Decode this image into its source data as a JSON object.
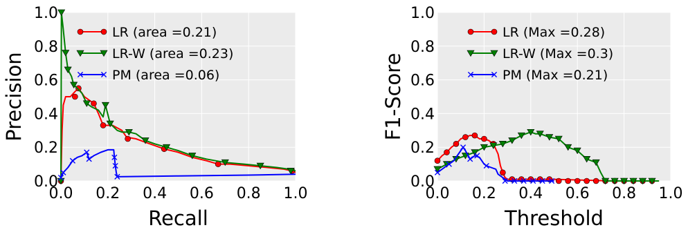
{
  "chart_data": [
    {
      "type": "line",
      "xlabel": "Recall",
      "ylabel": "Precision",
      "xlim": [
        0,
        1.0
      ],
      "ylim": [
        0,
        1.0
      ],
      "xticks": [
        "0.0",
        "0.2",
        "0.4",
        "0.6",
        "0.8",
        "1.0"
      ],
      "yticks": [
        "0.0",
        "0.2",
        "0.4",
        "0.6",
        "0.8",
        "1.0"
      ],
      "grid": true,
      "legend_position": "top-right",
      "series": [
        {
          "name": "LR (area =0.21)",
          "color": "#ff0000",
          "marker": "circle",
          "points": [
            [
              0.0,
              0.0
            ],
            [
              0.005,
              0.3
            ],
            [
              0.01,
              0.45
            ],
            [
              0.02,
              0.5
            ],
            [
              0.04,
              0.5
            ],
            [
              0.06,
              0.53
            ],
            [
              0.075,
              0.55
            ],
            [
              0.1,
              0.5
            ],
            [
              0.14,
              0.46
            ],
            [
              0.16,
              0.4
            ],
            [
              0.18,
              0.33
            ],
            [
              0.22,
              0.33
            ],
            [
              0.26,
              0.3
            ],
            [
              0.28,
              0.26
            ],
            [
              0.32,
              0.25
            ],
            [
              0.36,
              0.23
            ],
            [
              0.4,
              0.21
            ],
            [
              0.44,
              0.19
            ],
            [
              0.5,
              0.17
            ],
            [
              0.56,
              0.14
            ],
            [
              0.62,
              0.12
            ],
            [
              0.67,
              0.1
            ],
            [
              0.72,
              0.1
            ],
            [
              0.8,
              0.09
            ],
            [
              0.88,
              0.08
            ],
            [
              0.95,
              0.07
            ],
            [
              0.985,
              0.06
            ],
            [
              1.0,
              0.05
            ]
          ],
          "markers": [
            [
              0.0,
              0.0
            ],
            [
              0.06,
              0.5
            ],
            [
              0.075,
              0.55
            ],
            [
              0.14,
              0.46
            ],
            [
              0.18,
              0.33
            ],
            [
              0.285,
              0.25
            ],
            [
              0.44,
              0.19
            ],
            [
              0.67,
              0.1
            ],
            [
              0.985,
              0.06
            ]
          ]
        },
        {
          "name": "LR-W (area =0.23)",
          "color": "#008000",
          "marker": "triangle-down",
          "points": [
            [
              0.0,
              0.0
            ],
            [
              0.002,
              1.0
            ],
            [
              0.01,
              0.9
            ],
            [
              0.02,
              0.76
            ],
            [
              0.03,
              0.66
            ],
            [
              0.045,
              0.62
            ],
            [
              0.055,
              0.57
            ],
            [
              0.07,
              0.55
            ],
            [
              0.09,
              0.52
            ],
            [
              0.11,
              0.46
            ],
            [
              0.13,
              0.44
            ],
            [
              0.16,
              0.42
            ],
            [
              0.18,
              0.38
            ],
            [
              0.19,
              0.45
            ],
            [
              0.21,
              0.34
            ],
            [
              0.24,
              0.3
            ],
            [
              0.26,
              0.29
            ],
            [
              0.29,
              0.29
            ],
            [
              0.32,
              0.28
            ],
            [
              0.36,
              0.24
            ],
            [
              0.4,
              0.22
            ],
            [
              0.45,
              0.2
            ],
            [
              0.5,
              0.18
            ],
            [
              0.56,
              0.15
            ],
            [
              0.62,
              0.13
            ],
            [
              0.7,
              0.11
            ],
            [
              0.78,
              0.1
            ],
            [
              0.85,
              0.09
            ],
            [
              0.92,
              0.08
            ],
            [
              0.97,
              0.07
            ],
            [
              1.0,
              0.06
            ]
          ],
          "markers": [
            [
              0.0,
              0.0
            ],
            [
              0.002,
              1.0
            ],
            [
              0.02,
              0.76
            ],
            [
              0.03,
              0.66
            ],
            [
              0.055,
              0.57
            ],
            [
              0.11,
              0.46
            ],
            [
              0.19,
              0.45
            ],
            [
              0.21,
              0.34
            ],
            [
              0.29,
              0.29
            ],
            [
              0.36,
              0.24
            ],
            [
              0.45,
              0.2
            ],
            [
              0.56,
              0.15
            ],
            [
              0.7,
              0.11
            ],
            [
              0.85,
              0.09
            ],
            [
              0.98,
              0.06
            ]
          ]
        },
        {
          "name": "PM (area =0.06)",
          "color": "#0000ff",
          "marker": "x",
          "points": [
            [
              0.0,
              0.02
            ],
            [
              0.01,
              0.05
            ],
            [
              0.03,
              0.08
            ],
            [
              0.05,
              0.12
            ],
            [
              0.07,
              0.14
            ],
            [
              0.09,
              0.15
            ],
            [
              0.11,
              0.17
            ],
            [
              0.12,
              0.13
            ],
            [
              0.14,
              0.15
            ],
            [
              0.17,
              0.17
            ],
            [
              0.2,
              0.185
            ],
            [
              0.225,
              0.185
            ],
            [
              0.228,
              0.14
            ],
            [
              0.232,
              0.09
            ],
            [
              0.236,
              0.05
            ],
            [
              0.24,
              0.025
            ],
            [
              0.5,
              0.03
            ],
            [
              0.8,
              0.035
            ],
            [
              1.0,
              0.04
            ]
          ],
          "markers": [
            [
              0.0,
              0.02
            ],
            [
              0.01,
              0.05
            ],
            [
              0.05,
              0.12
            ],
            [
              0.11,
              0.17
            ],
            [
              0.12,
              0.13
            ],
            [
              0.228,
              0.14
            ],
            [
              0.232,
              0.09
            ],
            [
              0.24,
              0.025
            ]
          ]
        }
      ]
    },
    {
      "type": "line",
      "xlabel": "Threshold",
      "ylabel": "F1-Score",
      "xlim": [
        0,
        1.0
      ],
      "ylim": [
        0,
        1.0
      ],
      "xticks": [
        "0.0",
        "0.2",
        "0.4",
        "0.6",
        "0.8",
        "1.0"
      ],
      "yticks": [
        "0.0",
        "0.2",
        "0.4",
        "0.6",
        "0.8",
        "1.0"
      ],
      "grid": true,
      "legend_position": "top-right",
      "series": [
        {
          "name": "LR (Max =0.28)",
          "color": "#ff0000",
          "marker": "circle",
          "points": [
            [
              0.0,
              0.12
            ],
            [
              0.02,
              0.15
            ],
            [
              0.04,
              0.17
            ],
            [
              0.06,
              0.2
            ],
            [
              0.08,
              0.22
            ],
            [
              0.1,
              0.25
            ],
            [
              0.12,
              0.26
            ],
            [
              0.14,
              0.27
            ],
            [
              0.16,
              0.27
            ],
            [
              0.18,
              0.25
            ],
            [
              0.2,
              0.25
            ],
            [
              0.22,
              0.24
            ],
            [
              0.24,
              0.22
            ],
            [
              0.26,
              0.16
            ],
            [
              0.27,
              0.09
            ],
            [
              0.28,
              0.05
            ],
            [
              0.29,
              0.02
            ],
            [
              0.3,
              0.01
            ],
            [
              0.5,
              0.01
            ],
            [
              0.75,
              0.0
            ],
            [
              0.95,
              0.0
            ]
          ],
          "markers": [
            [
              0.0,
              0.12
            ],
            [
              0.04,
              0.17
            ],
            [
              0.08,
              0.22
            ],
            [
              0.12,
              0.26
            ],
            [
              0.16,
              0.27
            ],
            [
              0.2,
              0.25
            ],
            [
              0.24,
              0.22
            ],
            [
              0.28,
              0.05
            ],
            [
              0.32,
              0.01
            ],
            [
              0.36,
              0.01
            ],
            [
              0.4,
              0.01
            ],
            [
              0.44,
              0.01
            ],
            [
              0.48,
              0.01
            ],
            [
              0.52,
              0.0
            ],
            [
              0.56,
              0.0
            ],
            [
              0.6,
              0.0
            ],
            [
              0.64,
              0.0
            ],
            [
              0.68,
              0.0
            ],
            [
              0.72,
              0.0
            ],
            [
              0.76,
              0.0
            ],
            [
              0.8,
              0.0
            ],
            [
              0.84,
              0.0
            ],
            [
              0.88,
              0.0
            ],
            [
              0.92,
              0.0
            ]
          ]
        },
        {
          "name": "LR-W (Max =0.3)",
          "color": "#008000",
          "marker": "triangle-down",
          "points": [
            [
              0.0,
              0.07
            ],
            [
              0.04,
              0.1
            ],
            [
              0.08,
              0.13
            ],
            [
              0.12,
              0.15
            ],
            [
              0.16,
              0.17
            ],
            [
              0.2,
              0.2
            ],
            [
              0.24,
              0.21
            ],
            [
              0.28,
              0.22
            ],
            [
              0.32,
              0.24
            ],
            [
              0.36,
              0.27
            ],
            [
              0.4,
              0.29
            ],
            [
              0.42,
              0.28
            ],
            [
              0.44,
              0.28
            ],
            [
              0.48,
              0.26
            ],
            [
              0.52,
              0.25
            ],
            [
              0.56,
              0.2
            ],
            [
              0.6,
              0.18
            ],
            [
              0.64,
              0.13
            ],
            [
              0.68,
              0.11
            ],
            [
              0.7,
              0.05
            ],
            [
              0.72,
              0.0
            ],
            [
              0.95,
              0.0
            ]
          ],
          "markers": [
            [
              0.0,
              0.07
            ],
            [
              0.04,
              0.1
            ],
            [
              0.08,
              0.13
            ],
            [
              0.12,
              0.15
            ],
            [
              0.16,
              0.17
            ],
            [
              0.2,
              0.2
            ],
            [
              0.24,
              0.21
            ],
            [
              0.28,
              0.22
            ],
            [
              0.32,
              0.24
            ],
            [
              0.36,
              0.27
            ],
            [
              0.4,
              0.29
            ],
            [
              0.44,
              0.28
            ],
            [
              0.48,
              0.26
            ],
            [
              0.52,
              0.25
            ],
            [
              0.56,
              0.2
            ],
            [
              0.6,
              0.18
            ],
            [
              0.64,
              0.13
            ],
            [
              0.68,
              0.11
            ],
            [
              0.72,
              0.0
            ],
            [
              0.76,
              0.0
            ],
            [
              0.8,
              0.0
            ],
            [
              0.84,
              0.0
            ],
            [
              0.88,
              0.0
            ],
            [
              0.92,
              0.0
            ]
          ]
        },
        {
          "name": "PM (Max =0.21)",
          "color": "#0000ff",
          "marker": "x",
          "points": [
            [
              0.0,
              0.05
            ],
            [
              0.03,
              0.08
            ],
            [
              0.05,
              0.1
            ],
            [
              0.07,
              0.12
            ],
            [
              0.09,
              0.16
            ],
            [
              0.11,
              0.2
            ],
            [
              0.12,
              0.18
            ],
            [
              0.14,
              0.13
            ],
            [
              0.16,
              0.15
            ],
            [
              0.18,
              0.14
            ],
            [
              0.2,
              0.1
            ],
            [
              0.21,
              0.09
            ],
            [
              0.23,
              0.08
            ],
            [
              0.25,
              0.07
            ],
            [
              0.26,
              0.04
            ],
            [
              0.28,
              0.02
            ],
            [
              0.3,
              0.0
            ],
            [
              0.5,
              0.0
            ]
          ],
          "markers": [
            [
              0.0,
              0.05
            ],
            [
              0.05,
              0.1
            ],
            [
              0.11,
              0.2
            ],
            [
              0.14,
              0.13
            ],
            [
              0.17,
              0.15
            ],
            [
              0.21,
              0.09
            ],
            [
              0.29,
              0.0
            ],
            [
              0.33,
              0.0
            ],
            [
              0.37,
              0.0
            ],
            [
              0.41,
              0.0
            ],
            [
              0.45,
              0.0
            ],
            [
              0.49,
              0.0
            ]
          ]
        }
      ]
    }
  ]
}
